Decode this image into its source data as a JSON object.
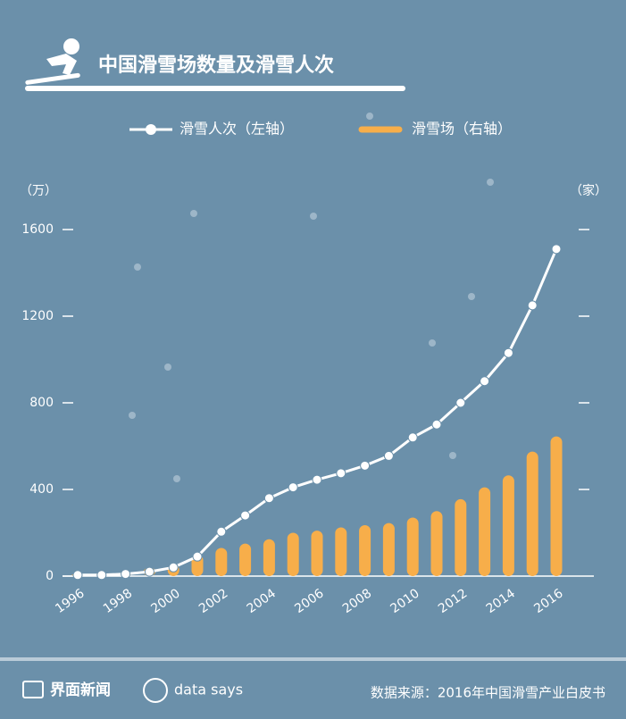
{
  "chart_data": {
    "type": "bar-line",
    "title": "中国滑雪场数量及滑雪人次",
    "y_unit": "（万）",
    "y2_unit": "（家）",
    "categories": [
      "1996",
      null,
      "1998",
      null,
      "2000",
      null,
      "2002",
      null,
      "2004",
      null,
      "2006",
      null,
      "2008",
      null,
      "2010",
      null,
      "2012",
      null,
      "2014",
      null,
      "2016"
    ],
    "series": [
      {
        "name": "滑雪人次（左轴）",
        "color": "#ffffff",
        "kind": "line",
        "axis": "y",
        "values": [
          5,
          5,
          10,
          20,
          40,
          90,
          205,
          280,
          360,
          410,
          445,
          475,
          510,
          555,
          640,
          700,
          800,
          900,
          1030,
          1250,
          1510
        ]
      },
      {
        "name": "滑雪场（右轴）",
        "color": "#f7ae4a",
        "kind": "bar",
        "axis": "y2",
        "values": [
          10,
          15,
          20,
          40,
          55,
          100,
          130,
          150,
          170,
          200,
          210,
          225,
          235,
          245,
          270,
          300,
          355,
          410,
          465,
          575,
          645
        ]
      }
    ],
    "ylim": [
      0,
      1600
    ],
    "yticks": [
      0,
      400,
      800,
      1200,
      1600
    ],
    "y2lim": [
      0,
      1600
    ],
    "y2ticks": [
      400,
      800,
      1200,
      1600
    ]
  },
  "footer": {
    "brand": "界面新闻",
    "brand2": "data says",
    "source": "数据来源：2016年中国滑雪产业白皮书"
  }
}
